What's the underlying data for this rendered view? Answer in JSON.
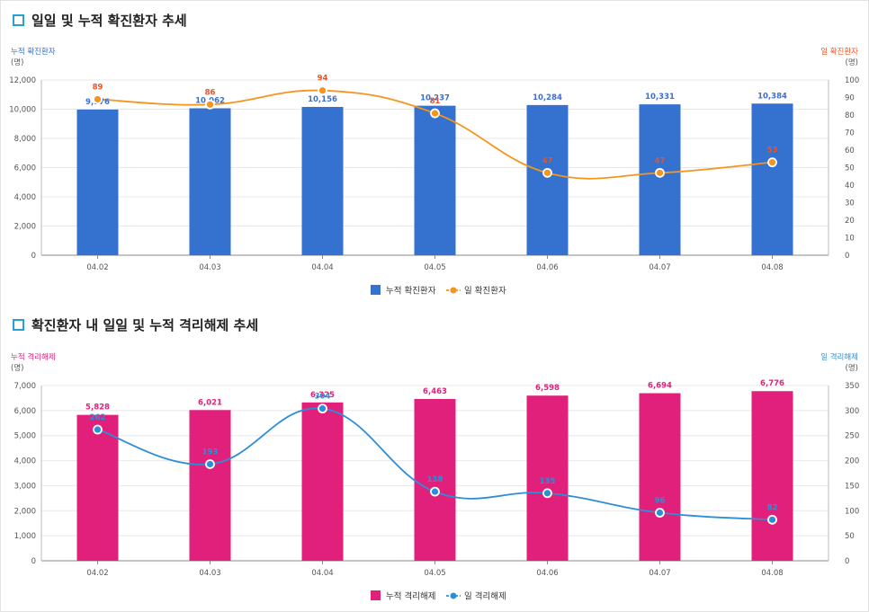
{
  "colors": {
    "blue_bar": "#3571cf",
    "orange_line": "#f7941d",
    "orange_label": "#e8542a",
    "blue_label": "#3a6fcf",
    "pink_bar": "#e0207a",
    "pink_label": "#e0207a",
    "blue_line": "#2d8ed8",
    "title_icon": "#2a9fd6"
  },
  "chart1": {
    "title": "일일 및 누적 확진환자 추세",
    "icon": "square-outline-icon",
    "left_axis_title": "누적 확진환자",
    "left_axis_unit": "(명)",
    "right_axis_title": "일 확진환자",
    "right_axis_unit": "(명)",
    "legend_bar": "누적 확진환자",
    "legend_line": "일 확진환자"
  },
  "chart2": {
    "title": "확진환자 내 일일 및 누적 격리해제 추세",
    "icon": "square-outline-icon",
    "left_axis_title": "누적 격리해제",
    "left_axis_unit": "(명)",
    "right_axis_title": "일 격리해제",
    "right_axis_unit": "(명)",
    "legend_bar": "누적 격리해제",
    "legend_line": "일 격리해제"
  },
  "chart_data": [
    {
      "type": "bar",
      "title": "일일 및 누적 확진환자 추세",
      "categories": [
        "04.02",
        "04.03",
        "04.04",
        "04.05",
        "04.06",
        "04.07",
        "04.08"
      ],
      "series": [
        {
          "name": "누적 확진환자",
          "type": "bar",
          "axis": "left",
          "values": [
            9976,
            10062,
            10156,
            10237,
            10284,
            10331,
            10384
          ],
          "labels": [
            "9,976",
            "10,062",
            "10,156",
            "10,237",
            "10,284",
            "10,331",
            "10,384"
          ]
        },
        {
          "name": "일 확진환자",
          "type": "line",
          "axis": "right",
          "values": [
            89,
            86,
            94,
            81,
            47,
            47,
            53
          ],
          "labels": [
            "89",
            "86",
            "94",
            "81",
            "47",
            "47",
            "53"
          ]
        }
      ],
      "left_ylim": [
        0,
        12000
      ],
      "left_ticks": [
        "0",
        "2,000",
        "4,000",
        "6,000",
        "8,000",
        "10,000",
        "12,000"
      ],
      "right_ylim": [
        0,
        100
      ],
      "right_ticks": [
        "0",
        "10",
        "20",
        "30",
        "40",
        "50",
        "60",
        "70",
        "80",
        "90",
        "100"
      ],
      "legend": "bottom-center",
      "grid": true
    },
    {
      "type": "bar",
      "title": "확진환자 내 일일 및 누적 격리해제 추세",
      "categories": [
        "04.02",
        "04.03",
        "04.04",
        "04.05",
        "04.06",
        "04.07",
        "04.08"
      ],
      "series": [
        {
          "name": "누적 격리해제",
          "type": "bar",
          "axis": "left",
          "values": [
            5828,
            6021,
            6325,
            6463,
            6598,
            6694,
            6776
          ],
          "labels": [
            "5,828",
            "6,021",
            "6,325",
            "6,463",
            "6,598",
            "6,694",
            "6,776"
          ]
        },
        {
          "name": "일 격리해제",
          "type": "line",
          "axis": "right",
          "values": [
            262,
            193,
            304,
            138,
            135,
            96,
            82
          ],
          "labels": [
            "262",
            "193",
            "304",
            "138",
            "135",
            "96",
            "82"
          ]
        }
      ],
      "left_ylim": [
        0,
        7000
      ],
      "left_ticks": [
        "0",
        "1,000",
        "2,000",
        "3,000",
        "4,000",
        "5,000",
        "6,000",
        "7,000"
      ],
      "right_ylim": [
        0,
        350
      ],
      "right_ticks": [
        "0",
        "50",
        "100",
        "150",
        "200",
        "250",
        "300",
        "350"
      ],
      "legend": "bottom-center",
      "grid": true
    }
  ]
}
